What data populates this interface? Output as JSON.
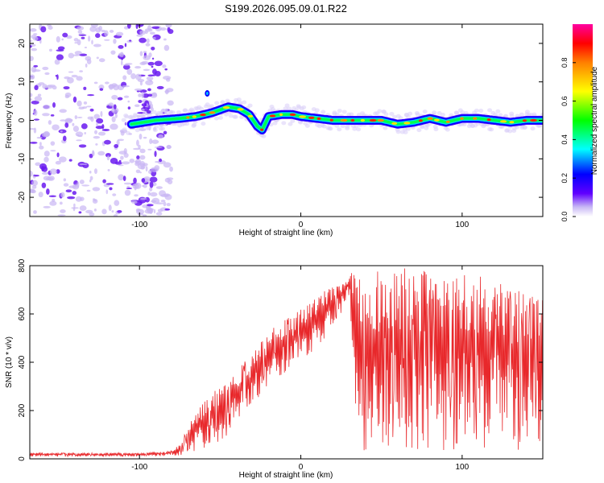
{
  "figure": {
    "title": "S199.2026.095.09.01.R22"
  },
  "chart_data": [
    {
      "type": "heatmap",
      "xlabel": "Height of straight line (km)",
      "ylabel": "Frequency (Hz)",
      "xlim": [
        -168,
        150
      ],
      "ylim": [
        -25,
        25
      ],
      "xticks": [
        -100,
        0,
        100
      ],
      "yticks": [
        -20,
        -10,
        0,
        10,
        20
      ],
      "colorbar": {
        "label": "Normalized spectral amplitude",
        "range": [
          0,
          1
        ],
        "ticks": [
          0.0,
          0.2,
          0.4,
          0.6,
          0.8
        ],
        "colormap": [
          "#cfc0f5",
          "#5a00ff",
          "#0000ff",
          "#00ffff",
          "#00ff00",
          "#ffff00",
          "#ff8000",
          "#ff0000",
          "#ff00a0"
        ]
      },
      "ridge": {
        "x": [
          -105,
          -90,
          -75,
          -65,
          -55,
          -45,
          -38,
          -32,
          -27,
          -24,
          -20,
          -12,
          -5,
          0,
          10,
          20,
          30,
          40,
          50,
          60,
          70,
          80,
          90,
          100,
          110,
          120,
          130,
          140,
          150
        ],
        "y": [
          -1,
          0,
          0.5,
          1,
          2,
          3.5,
          3,
          1.5,
          -1.5,
          -2.5,
          1,
          1.5,
          1.5,
          1,
          0.5,
          0,
          0,
          0,
          0,
          -1,
          -0.5,
          0.5,
          -0.5,
          0.5,
          0.5,
          0,
          -0.5,
          0,
          0
        ]
      },
      "noise_region": {
        "x": [
          -168,
          -80
        ],
        "y": [
          -25,
          25
        ]
      },
      "isolated_peak": {
        "x": -58,
        "y": 7
      }
    },
    {
      "type": "line",
      "xlabel": "Height of straight line (km)",
      "ylabel": "SNR (10 * v/v)",
      "xlim": [
        -168,
        150
      ],
      "ylim": [
        0,
        800
      ],
      "xticks": [
        -100,
        0,
        100
      ],
      "yticks": [
        0,
        200,
        400,
        600,
        800
      ],
      "series": [
        {
          "color": "#e8282b",
          "envelope": {
            "x": [
              -168,
              -130,
              -100,
              -80,
              -75,
              -65,
              -55,
              -45,
              -35,
              -25,
              -15,
              -5,
              5,
              15,
              25,
              30,
              35,
              40,
              60,
              80,
              100,
              110,
              120,
              130,
              140,
              150
            ],
            "upper": [
              25,
              25,
              25,
              35,
              60,
              200,
              280,
              320,
              400,
              480,
              560,
              600,
              640,
              700,
              730,
              770,
              780,
              790,
              790,
              790,
              780,
              770,
              760,
              720,
              680,
              660
            ],
            "lower": [
              10,
              10,
              10,
              12,
              15,
              30,
              60,
              90,
              200,
              260,
              330,
              380,
              430,
              500,
              600,
              680,
              100,
              20,
              30,
              30,
              40,
              40,
              50,
              40,
              20,
              30
            ]
          }
        }
      ]
    }
  ]
}
